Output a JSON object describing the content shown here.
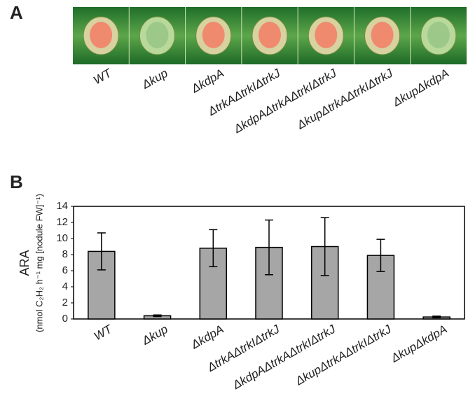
{
  "panels": {
    "a": "A",
    "b": "B"
  },
  "chart_data": {
    "type": "bar",
    "y_label": "ARA",
    "y_sublabel": "(nmol C₂H₂ h⁻¹ mg [nodule FW]⁻¹)",
    "categories": [
      "WT",
      "Δkup",
      "ΔkdpA",
      "ΔtrkAΔtrkIΔtrkJ",
      "ΔkdpAΔtrkAΔtrkIΔtrkJ",
      "ΔkupΔtrkAΔtrkIΔtrkJ",
      "ΔkupΔkdpA"
    ],
    "values": [
      8.4,
      0.4,
      8.8,
      8.9,
      9.0,
      7.9,
      0.25
    ],
    "errors": [
      2.3,
      0.1,
      2.3,
      3.4,
      3.6,
      2.0,
      0.1
    ],
    "color": "#a6a6a6",
    "ylim": [
      0,
      14
    ],
    "yticks": [
      0,
      2,
      4,
      6,
      8,
      10,
      12,
      14
    ],
    "grid": false
  }
}
